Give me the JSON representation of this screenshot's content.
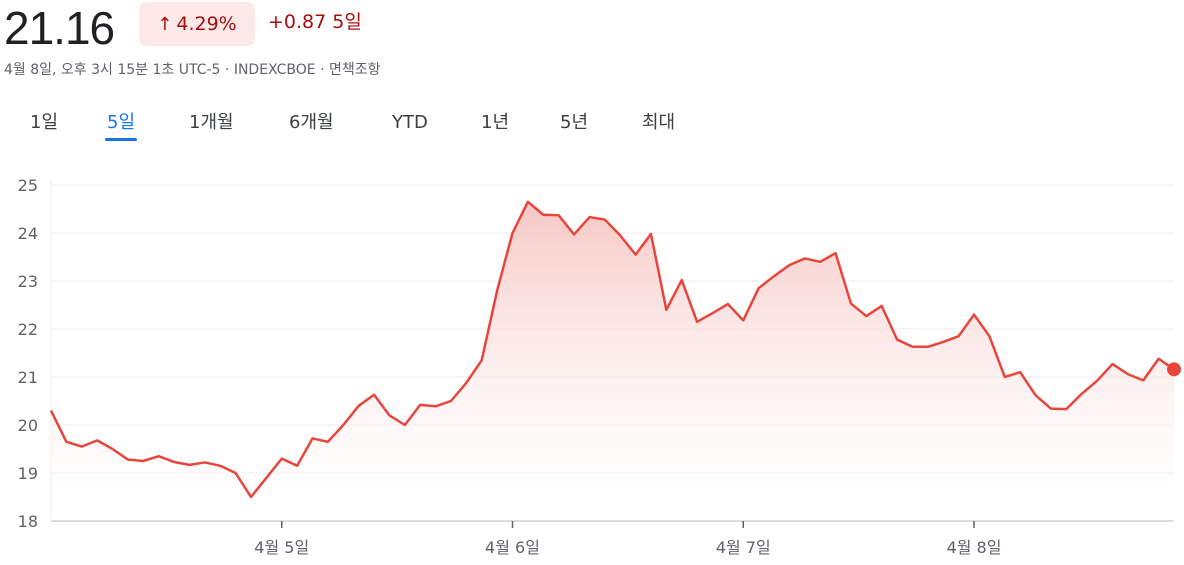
{
  "header": {
    "price": "21.16",
    "percent_change": "4.29%",
    "abs_change": "+0.87",
    "period": "5일",
    "meta": "4월 8일, 오후 3시 15분 1초 UTC-5 · INDEXCBOE · 면책조항",
    "up_arrow_icon": "arrow-up-icon"
  },
  "tabs": [
    {
      "label": "1일",
      "active": false
    },
    {
      "label": "5일",
      "active": true
    },
    {
      "label": "1개월",
      "active": false
    },
    {
      "label": "6개월",
      "active": false
    },
    {
      "label": "YTD",
      "active": false
    },
    {
      "label": "1년",
      "active": false
    },
    {
      "label": "5년",
      "active": false
    },
    {
      "label": "최대",
      "active": false
    }
  ],
  "colors": {
    "line": "#e8453c",
    "fill_top": "#f6c4c1",
    "grid": "#ececec",
    "axis": "#5f6368",
    "accent_active": "#1a73e8",
    "down_red": "#a50e0e"
  },
  "chart_data": {
    "type": "area",
    "title": "",
    "xlabel": "",
    "ylabel": "",
    "ylim": [
      18,
      25
    ],
    "yticks": [
      18,
      19,
      20,
      21,
      22,
      23,
      24,
      25
    ],
    "xticks": [
      {
        "label": "4월 5일",
        "index": 15
      },
      {
        "label": "4월 6일",
        "index": 30
      },
      {
        "label": "4월 7일",
        "index": 45
      },
      {
        "label": "4월 8일",
        "index": 60
      }
    ],
    "grid": true,
    "legend": "none",
    "series": [
      {
        "values": [
          20.3,
          19.65,
          19.55,
          19.68,
          19.5,
          19.28,
          19.25,
          19.35,
          19.23,
          19.17,
          19.22,
          19.15,
          19.0,
          18.5,
          18.9,
          19.3,
          19.15,
          19.72,
          19.65,
          20.0,
          20.4,
          20.63,
          20.2,
          20.0,
          20.42,
          20.39,
          20.5,
          20.88,
          21.35,
          22.8,
          24.0,
          24.65,
          24.38,
          24.37,
          23.97,
          24.33,
          24.28,
          23.95,
          23.55,
          23.98,
          22.4,
          23.02,
          22.15,
          22.33,
          22.52,
          22.18,
          22.85,
          23.1,
          23.33,
          23.47,
          23.4,
          23.58,
          22.53,
          22.27,
          22.48,
          21.78,
          21.63,
          21.63,
          21.73,
          21.85,
          22.3,
          21.85,
          21.0,
          21.1,
          20.62,
          20.34,
          20.33,
          20.65,
          20.92,
          21.27,
          21.06,
          20.93,
          21.38,
          21.16
        ]
      }
    ],
    "last_value": 21.16
  }
}
